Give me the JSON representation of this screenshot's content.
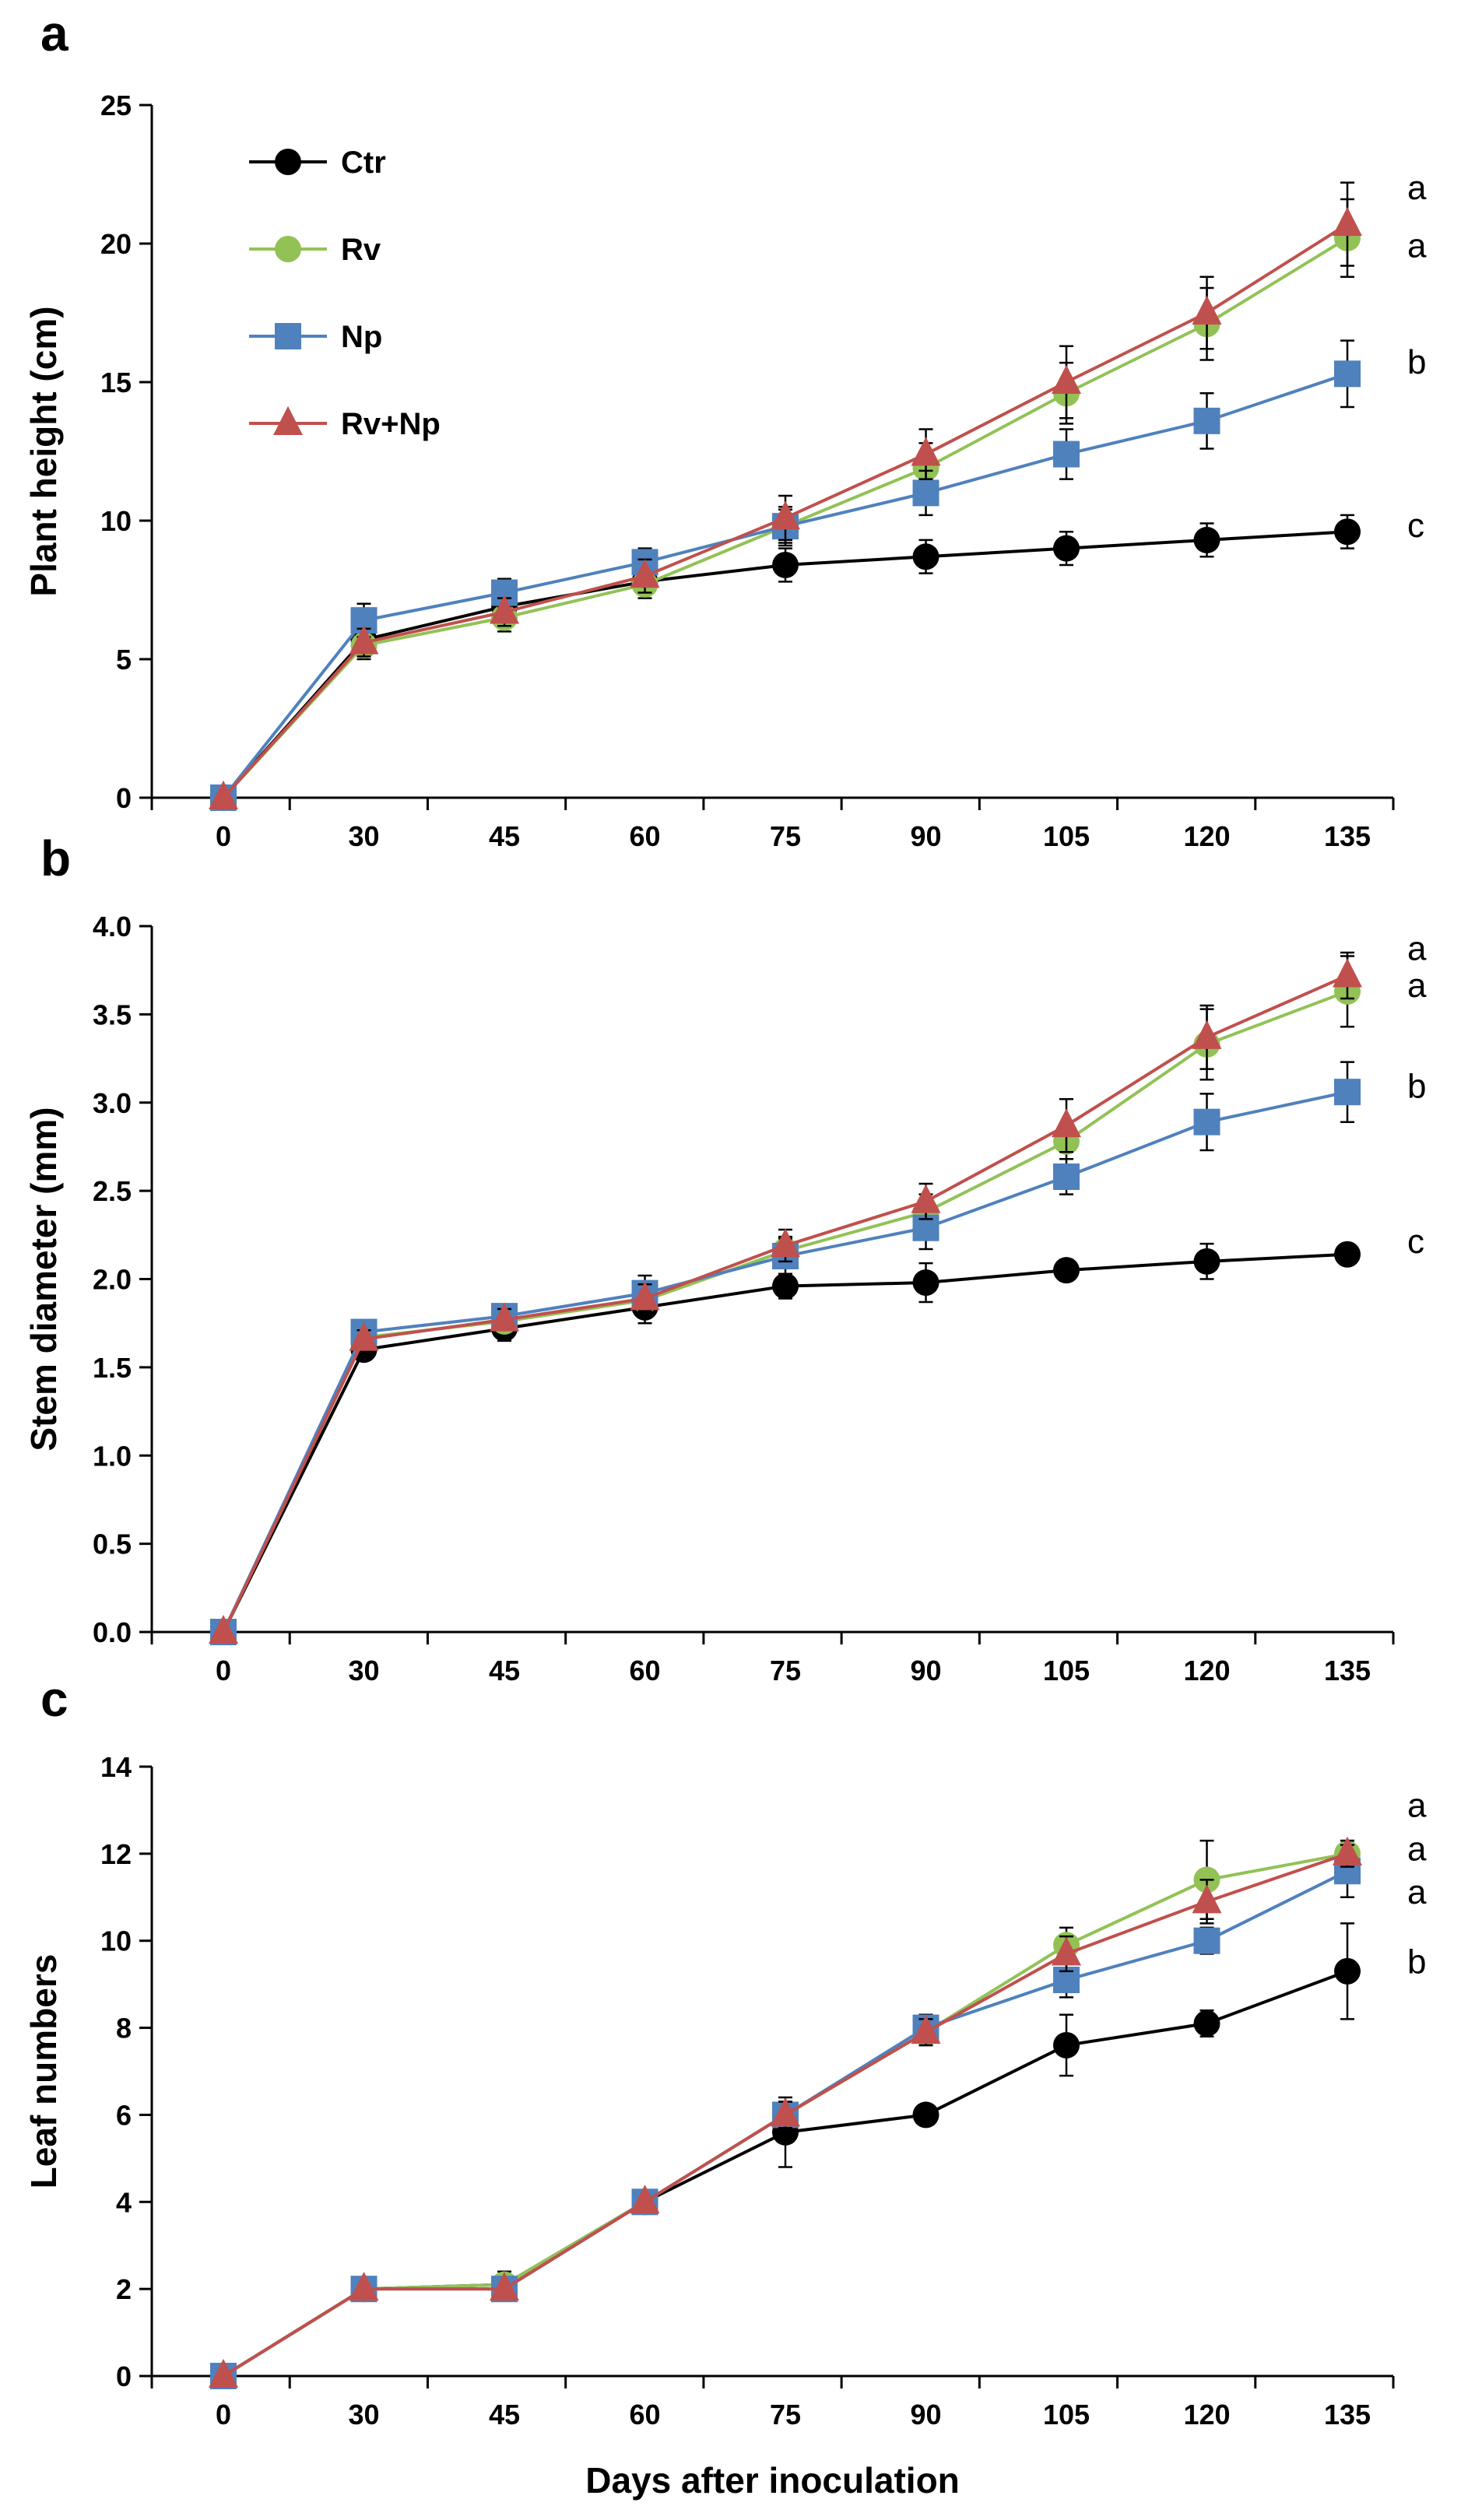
{
  "chart_data": [
    {
      "type": "line",
      "panel": "a",
      "ylabel": "Plant height (cm)",
      "xlabel": "",
      "categories": [
        "0",
        "30",
        "45",
        "60",
        "75",
        "90",
        "105",
        "120",
        "135"
      ],
      "ylim": [
        0,
        25
      ],
      "yticks": [
        0,
        5,
        10,
        15,
        20,
        25
      ],
      "ytick_labels": [
        "0",
        "5",
        "10",
        "15",
        "20",
        "25"
      ],
      "grid": false,
      "legend": "top-left",
      "series": [
        {
          "name": "Ctr",
          "color": "#000000",
          "marker": "circle",
          "values": [
            0,
            5.7,
            6.9,
            7.8,
            8.4,
            8.7,
            9.0,
            9.3,
            9.6
          ],
          "errors": [
            0,
            0.4,
            0.4,
            0.4,
            0.6,
            0.6,
            0.6,
            0.6,
            0.6
          ]
        },
        {
          "name": "Rv",
          "color": "#92c256",
          "marker": "circle",
          "values": [
            0,
            5.5,
            6.5,
            7.7,
            9.8,
            11.9,
            14.6,
            17.1,
            20.2
          ],
          "errors": [
            0,
            0.5,
            0.5,
            0.5,
            0.7,
            0.9,
            1.1,
            1.3,
            1.4
          ]
        },
        {
          "name": "Np",
          "color": "#4f81bd",
          "marker": "square",
          "values": [
            0,
            6.4,
            7.4,
            8.5,
            9.8,
            11.0,
            12.4,
            13.6,
            15.3
          ],
          "errors": [
            0,
            0.6,
            0.5,
            0.5,
            0.6,
            0.8,
            0.9,
            1.0,
            1.2
          ]
        },
        {
          "name": "Rv+Np",
          "color": "#c0504d",
          "marker": "triangle",
          "values": [
            0,
            5.6,
            6.7,
            8.0,
            10.1,
            12.4,
            15.0,
            17.5,
            20.7
          ],
          "errors": [
            0,
            0.5,
            0.5,
            0.6,
            0.8,
            0.9,
            1.3,
            1.3,
            1.5
          ]
        }
      ],
      "significance": [
        {
          "label": "a",
          "value": 22.0
        },
        {
          "label": "a",
          "value": 19.9
        },
        {
          "label": "b",
          "value": 15.7
        },
        {
          "label": "c",
          "value": 9.8
        }
      ]
    },
    {
      "type": "line",
      "panel": "b",
      "ylabel": "Stem diameter (mm)",
      "xlabel": "",
      "categories": [
        "0",
        "30",
        "45",
        "60",
        "75",
        "90",
        "105",
        "120",
        "135"
      ],
      "ylim": [
        0,
        4
      ],
      "yticks": [
        0,
        0.5,
        1,
        1.5,
        2,
        2.5,
        3,
        3.5,
        4
      ],
      "ytick_labels": [
        "0.0",
        "0.5",
        "1.0",
        "1.5",
        "2.0",
        "2.5",
        "3.0",
        "3.5",
        "4.0"
      ],
      "grid": false,
      "series": [
        {
          "name": "Ctr",
          "color": "#000000",
          "marker": "circle",
          "values": [
            0,
            1.6,
            1.72,
            1.84,
            1.96,
            1.98,
            2.05,
            2.1,
            2.14
          ],
          "errors": [
            0,
            0.05,
            0.07,
            0.09,
            0.07,
            0.11,
            0.06,
            0.1,
            0.05
          ]
        },
        {
          "name": "Rv",
          "color": "#92c256",
          "marker": "circle",
          "values": [
            0,
            1.67,
            1.76,
            1.88,
            2.16,
            2.38,
            2.78,
            3.33,
            3.63
          ],
          "errors": [
            0,
            0.06,
            0.06,
            0.08,
            0.08,
            0.1,
            0.1,
            0.2,
            0.2
          ]
        },
        {
          "name": "Np",
          "color": "#4f81bd",
          "marker": "square",
          "values": [
            0,
            1.7,
            1.79,
            1.92,
            2.13,
            2.29,
            2.58,
            2.89,
            3.06
          ],
          "errors": [
            0,
            0.06,
            0.06,
            0.1,
            0.1,
            0.12,
            0.1,
            0.16,
            0.17
          ]
        },
        {
          "name": "Rv+Np",
          "color": "#c0504d",
          "marker": "triangle",
          "values": [
            0,
            1.66,
            1.77,
            1.89,
            2.19,
            2.44,
            2.87,
            3.37,
            3.72
          ],
          "errors": [
            0,
            0.05,
            0.06,
            0.08,
            0.09,
            0.1,
            0.15,
            0.18,
            0.13
          ]
        }
      ],
      "significance": [
        {
          "label": "a",
          "value": 3.87
        },
        {
          "label": "a",
          "value": 3.66
        },
        {
          "label": "b",
          "value": 3.09
        },
        {
          "label": "c",
          "value": 2.21
        }
      ]
    },
    {
      "type": "line",
      "panel": "c",
      "ylabel": "Leaf numbers",
      "xlabel": "Days after inoculation",
      "categories": [
        "0",
        "30",
        "45",
        "60",
        "75",
        "90",
        "105",
        "120",
        "135"
      ],
      "ylim": [
        0,
        14
      ],
      "yticks": [
        0,
        2,
        4,
        6,
        8,
        10,
        12,
        14
      ],
      "ytick_labels": [
        "0",
        "2",
        "4",
        "6",
        "8",
        "10",
        "12",
        "14"
      ],
      "grid": false,
      "series": [
        {
          "name": "Ctr",
          "color": "#000000",
          "marker": "circle",
          "values": [
            0,
            2.0,
            2.1,
            4.0,
            5.6,
            6.0,
            7.6,
            8.1,
            9.3
          ],
          "errors": [
            0,
            0,
            0.3,
            0,
            0.8,
            0,
            0.7,
            0.3,
            1.1
          ]
        },
        {
          "name": "Rv",
          "color": "#92c256",
          "marker": "circle",
          "values": [
            0,
            2.0,
            2.1,
            4.0,
            6.0,
            7.9,
            9.9,
            11.4,
            12.0
          ],
          "errors": [
            0,
            0,
            0.3,
            0,
            0.3,
            0.3,
            0.4,
            0.9,
            0.3
          ]
        },
        {
          "name": "Np",
          "color": "#4f81bd",
          "marker": "square",
          "values": [
            0,
            2.0,
            2.0,
            4.0,
            6.0,
            8.0,
            9.1,
            10.0,
            11.6
          ],
          "errors": [
            0,
            0,
            0,
            0,
            0.3,
            0.3,
            0.4,
            0.3,
            0.6
          ]
        },
        {
          "name": "Rv+Np",
          "color": "#c0504d",
          "marker": "triangle",
          "values": [
            0,
            2.0,
            2.0,
            4.0,
            6.0,
            7.9,
            9.7,
            10.9,
            12.0
          ],
          "errors": [
            0,
            0,
            0,
            0,
            0.3,
            0.3,
            0.4,
            0.5,
            0.3
          ]
        }
      ],
      "significance": [
        {
          "label": "a",
          "value": 13.1
        },
        {
          "label": "a",
          "value": 12.1
        },
        {
          "label": "a",
          "value": 11.1
        },
        {
          "label": "b",
          "value": 9.5
        }
      ]
    }
  ]
}
